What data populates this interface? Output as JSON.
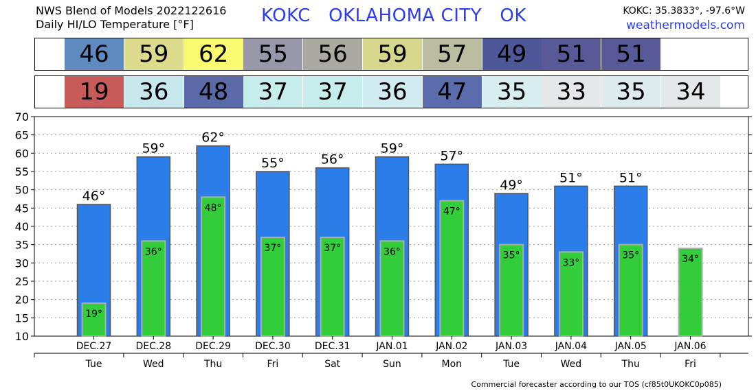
{
  "header": {
    "title_line1": "NWS Blend of Models 2022122616",
    "title_line2": "Daily HI/LO Temperature [°F]",
    "station": "KOKC   OKLAHOMA CITY   OK",
    "coords": "KOKC: 35.3833°, -97.6°W",
    "site": "weathermodels.com"
  },
  "hi_strip": [
    {
      "value": "46",
      "color": "#5e8ac0"
    },
    {
      "value": "59",
      "color": "#dcdc8c"
    },
    {
      "value": "62",
      "color": "#fafa70"
    },
    {
      "value": "55",
      "color": "#9898aa"
    },
    {
      "value": "56",
      "color": "#aaaaa0"
    },
    {
      "value": "59",
      "color": "#d6d68c"
    },
    {
      "value": "57",
      "color": "#bcbca0"
    },
    {
      "value": "49",
      "color": "#4e5898"
    },
    {
      "value": "51",
      "color": "#585a98"
    },
    {
      "value": "51",
      "color": "#585a98"
    }
  ],
  "lo_strip": [
    {
      "value": "19",
      "color": "#c85a5a"
    },
    {
      "value": "36",
      "color": "#c6e8ec"
    },
    {
      "value": "48",
      "color": "#5a6aa8"
    },
    {
      "value": "37",
      "color": "#c6ecec"
    },
    {
      "value": "37",
      "color": "#c6ecec"
    },
    {
      "value": "36",
      "color": "#d0ecf0"
    },
    {
      "value": "47",
      "color": "#5a6cac"
    },
    {
      "value": "35",
      "color": "#d8eeee"
    },
    {
      "value": "33",
      "color": "#e4e8e8"
    },
    {
      "value": "35",
      "color": "#dcecec"
    },
    {
      "value": "34",
      "color": "#e4e8e8"
    }
  ],
  "chart_data": {
    "type": "bar",
    "categories": [
      "DEC.27",
      "DEC.28",
      "DEC.29",
      "DEC.30",
      "DEC.31",
      "JAN.01",
      "JAN.02",
      "JAN.03",
      "JAN.04",
      "JAN.05",
      "JAN.06"
    ],
    "weekdays": [
      "Tue",
      "Wed",
      "Thu",
      "Fri",
      "Sat",
      "Sun",
      "Mon",
      "Tue",
      "Wed",
      "Thu",
      "Fri"
    ],
    "series": [
      {
        "values": [
          46,
          59,
          62,
          55,
          56,
          59,
          57,
          49,
          51,
          51,
          null
        ],
        "color": "#2b7de9"
      },
      {
        "values": [
          19,
          36,
          48,
          37,
          37,
          36,
          47,
          35,
          33,
          35,
          34
        ],
        "color": "#33cc3a"
      }
    ],
    "hi_labels": [
      "46°",
      "59°",
      "62°",
      "55°",
      "56°",
      "59°",
      "57°",
      "49°",
      "51°",
      "51°",
      ""
    ],
    "lo_labels": [
      "19°",
      "36°",
      "48°",
      "37°",
      "37°",
      "36°",
      "47°",
      "35°",
      "33°",
      "35°",
      "34°"
    ],
    "y_ticks": [
      "10",
      "15",
      "20",
      "25",
      "30",
      "35",
      "40",
      "45",
      "50",
      "55",
      "60",
      "65",
      "70"
    ],
    "ylim": [
      10,
      70
    ],
    "grid": true
  },
  "footer": "Commercial forecaster according to our TOS (cf85t0UKOKC0p085)"
}
